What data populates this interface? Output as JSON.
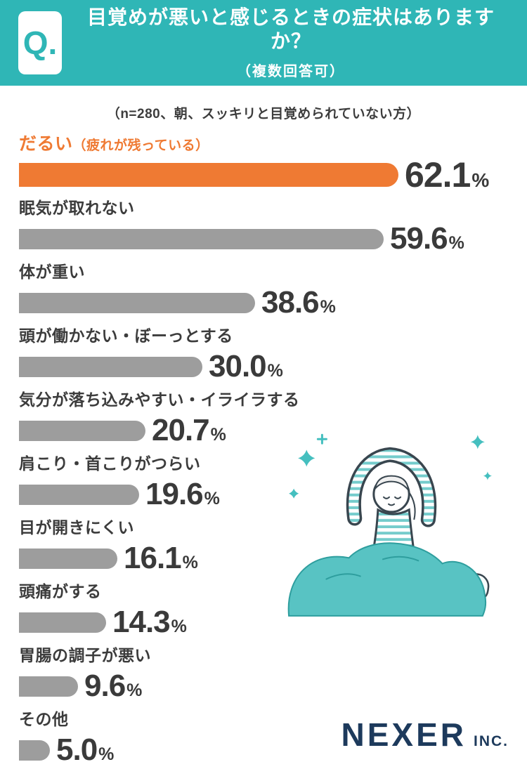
{
  "header": {
    "q_badge": "Q.",
    "title": "目覚めが悪いと感じるときの症状はありますか？",
    "subtitle": "（複数回答可）"
  },
  "note": "（n=280、朝、スッキリと目覚められていない方）",
  "chart_data": {
    "type": "bar",
    "orientation": "horizontal",
    "title": "目覚めが悪いと感じるときの症状はありますか？（複数回答可）",
    "categories": [
      "だるい（疲れが残っている）",
      "眠気が取れない",
      "体が重い",
      "頭が働かない・ぼーっとする",
      "気分が落ち込みやすい・イライラする",
      "肩こり・首こりがつらい",
      "目が開きにくい",
      "頭痛がする",
      "胃腸の調子が悪い",
      "その他"
    ],
    "values": [
      62.1,
      59.6,
      38.6,
      30.0,
      20.7,
      19.6,
      16.1,
      14.3,
      9.6,
      5.0
    ],
    "unit": "%",
    "highlight_index": 0,
    "xlim": [
      0,
      65
    ],
    "grid": false,
    "legend": false,
    "bar_color_default": "#9d9d9d",
    "bar_color_highlight": "#ef7a33"
  },
  "illustration": "person-stretching-in-bed-with-sparkles",
  "footer": {
    "brand": "NEXER",
    "brand_suffix": "INC."
  },
  "colors": {
    "teal": "#2fb6b6",
    "orange": "#ef7a33",
    "gray": "#9d9d9d",
    "navy": "#1d3a5c",
    "text": "#3a3a3a"
  }
}
